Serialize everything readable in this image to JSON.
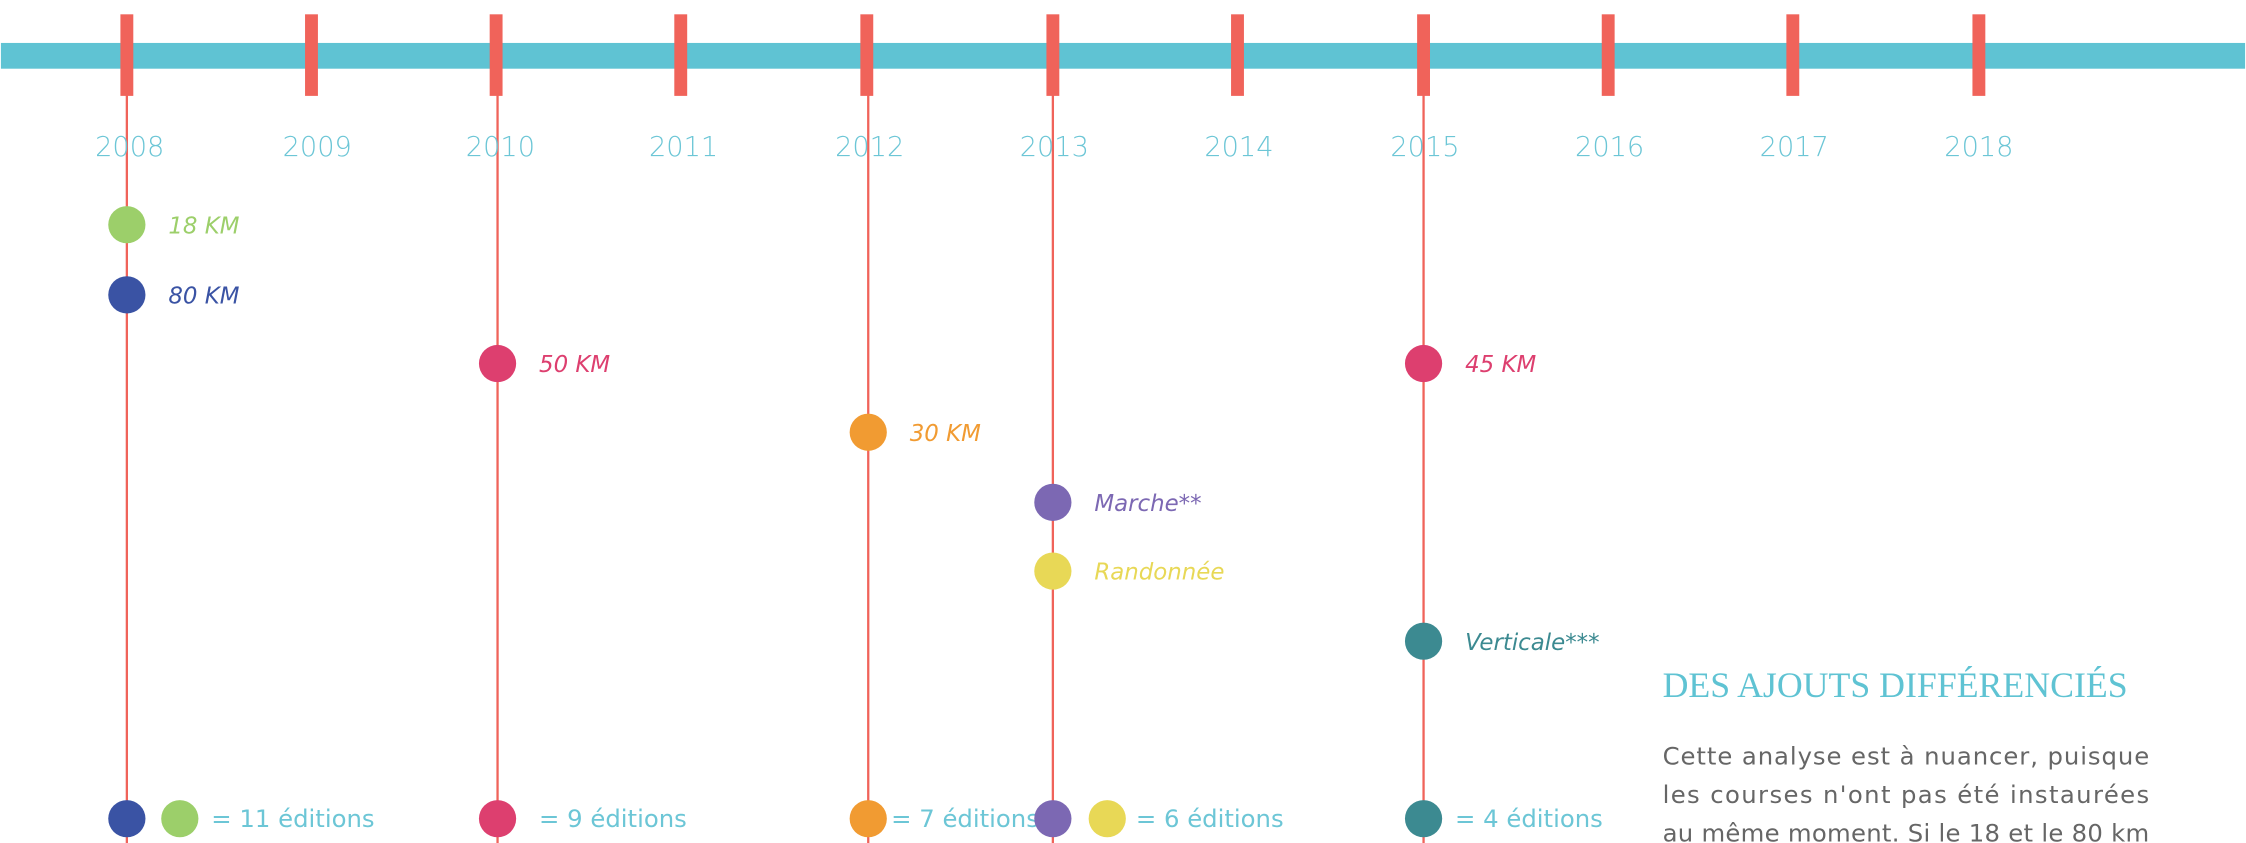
{
  "years": [
    "2008",
    "2009",
    "2010",
    "2011",
    "2012",
    "2013",
    "2014",
    "2015",
    "2016",
    "2017",
    "2018"
  ],
  "events": [
    {
      "label": "18 KM",
      "color": "#9ccf6a"
    },
    {
      "label": "80 KM",
      "color": "#3a53a4"
    },
    {
      "label": "50 KM",
      "color": "#dd3f6f"
    },
    {
      "label": "30 KM",
      "color": "#f19b32"
    },
    {
      "label": "Marche**",
      "color": "#7c68b3"
    },
    {
      "label": "Randonnée",
      "color": "#e8d856"
    },
    {
      "label": "45 KM",
      "color": "#dd3f6f"
    },
    {
      "label": "Verticale***",
      "color": "#3c8a91"
    }
  ],
  "editions": [
    {
      "label": "= 11 éditions",
      "colors": [
        "#3a53a4",
        "#9ccf6a"
      ]
    },
    {
      "label": "= 9 éditions",
      "colors": [
        "#dd3f6f"
      ]
    },
    {
      "label": "= 7 éditions",
      "colors": [
        "#f19b32"
      ]
    },
    {
      "label": "= 6 éditions",
      "colors": [
        "#7c68b3",
        "#e8d856"
      ]
    },
    {
      "label": "= 4 éditions",
      "colors": [
        "#3c8a91"
      ]
    }
  ],
  "heading": "DES AJOUTS DIFFÉRENCIÉS",
  "paragraph": [
    "Cette analyse est à nuancer, puisque",
    "les courses n'ont pas été instaurées",
    "au même moment. Si le 18 et le 80 km"
  ]
}
